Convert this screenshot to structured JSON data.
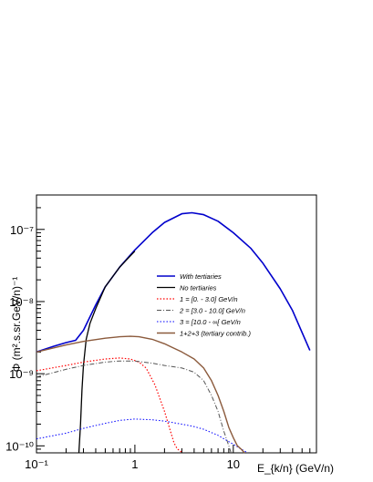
{
  "chart_data": {
    "type": "line",
    "title": "",
    "xlabel": "E_{k/n} (GeV/n)",
    "ylabel": "Φ (m².s.sr.GeV/n)⁻¹",
    "xscale": "log",
    "yscale": "log",
    "xlim": [
      0.1,
      70
    ],
    "ylim": [
      8e-11,
      3e-07
    ],
    "x_ticks": [
      {
        "value": 0.1,
        "label": "10⁻¹"
      },
      {
        "value": 1,
        "label": "1"
      },
      {
        "value": 10,
        "label": "10"
      }
    ],
    "y_ticks": [
      {
        "value": 1e-10,
        "label": "10⁻¹⁰"
      },
      {
        "value": 1e-09,
        "label": "10⁻⁹"
      },
      {
        "value": 1e-08,
        "label": "10⁻⁸"
      },
      {
        "value": 1e-07,
        "label": "10⁻⁷"
      }
    ],
    "grid": false,
    "legend_position": "center-right",
    "series": [
      {
        "name": "With tertiaries",
        "color": "#0000cc",
        "dash": "solid",
        "width": 1.6,
        "x": [
          0.1,
          0.15,
          0.2,
          0.25,
          0.3,
          0.4,
          0.5,
          0.7,
          1,
          1.5,
          2,
          3,
          3.8,
          5,
          7,
          10,
          15,
          20,
          30,
          40,
          60
        ],
        "y": [
          2e-09,
          2.4e-09,
          2.7e-09,
          2.9e-09,
          4e-09,
          9e-09,
          1.6e-08,
          3e-08,
          5.2e-08,
          9e-08,
          1.25e-07,
          1.65e-07,
          1.7e-07,
          1.6e-07,
          1.3e-07,
          9e-08,
          5.5e-08,
          3.4e-08,
          1.5e-08,
          7.5e-09,
          2.1e-09
        ]
      },
      {
        "name": "No tertiaries",
        "color": "#000000",
        "dash": "solid",
        "width": 1.3,
        "x": [
          0.27,
          0.28,
          0.29,
          0.3,
          0.32,
          0.35,
          0.4,
          0.5,
          0.7,
          1
        ],
        "y": [
          8e-11,
          2e-10,
          6e-10,
          1.3e-09,
          3e-09,
          5e-09,
          8e-09,
          1.6e-08,
          3e-08,
          5e-08
        ]
      },
      {
        "name": "1 = [0. - 3.0] GeV/n",
        "color": "#ff0000",
        "dash": "dot",
        "width": 1.2,
        "x": [
          0.1,
          0.2,
          0.3,
          0.5,
          0.7,
          0.9,
          1.1,
          1.3,
          1.6,
          2,
          2.3,
          2.5,
          2.7,
          2.9,
          3.0
        ],
        "y": [
          1.1e-09,
          1.3e-09,
          1.45e-09,
          1.6e-09,
          1.65e-09,
          1.6e-09,
          1.45e-09,
          1.2e-09,
          7e-10,
          3e-10,
          1.6e-10,
          1.1e-10,
          9e-11,
          8.5e-11,
          8e-11
        ]
      },
      {
        "name": "2 = [3.0 - 10.0] GeV/n",
        "color": "#555555",
        "dash": "dashdot",
        "width": 1.0,
        "x": [
          0.1,
          0.2,
          0.3,
          0.5,
          0.7,
          1,
          1.5,
          2,
          3,
          4,
          5,
          6,
          7,
          8,
          9,
          9.5
        ],
        "y": [
          9e-10,
          1.15e-09,
          1.3e-09,
          1.45e-09,
          1.5e-09,
          1.5e-09,
          1.4e-09,
          1.3e-09,
          1.2e-09,
          1.05e-09,
          8e-10,
          5e-10,
          3e-10,
          1.6e-10,
          1e-10,
          8e-11
        ]
      },
      {
        "name": "3 = [10.0 - ∞[ GeV/n",
        "color": "#0000ff",
        "dash": "dot",
        "width": 1.0,
        "x": [
          0.1,
          0.2,
          0.3,
          0.5,
          0.7,
          1,
          1.5,
          2,
          3,
          4,
          5,
          7,
          10,
          12,
          14
        ],
        "y": [
          1.25e-10,
          1.5e-10,
          1.75e-10,
          2.05e-10,
          2.25e-10,
          2.35e-10,
          2.3e-10,
          2.2e-10,
          2e-10,
          1.85e-10,
          1.7e-10,
          1.4e-10,
          1.05e-10,
          9e-11,
          8e-11
        ]
      },
      {
        "name": "1+2+3 (tertiary contrib.)",
        "color": "#8b5a3c",
        "dash": "solid",
        "width": 1.4,
        "x": [
          0.1,
          0.2,
          0.3,
          0.5,
          0.7,
          0.9,
          1.1,
          1.5,
          2,
          3,
          4,
          5,
          6,
          7,
          8,
          9,
          10,
          11,
          12,
          13
        ],
        "y": [
          2e-09,
          2.5e-09,
          2.8e-09,
          3.1e-09,
          3.25e-09,
          3.3e-09,
          3.25e-09,
          3e-09,
          2.6e-09,
          2e-09,
          1.6e-09,
          1.2e-09,
          8e-10,
          5e-10,
          3e-10,
          1.8e-10,
          1.3e-10,
          1e-10,
          9e-11,
          8e-11
        ]
      }
    ]
  }
}
